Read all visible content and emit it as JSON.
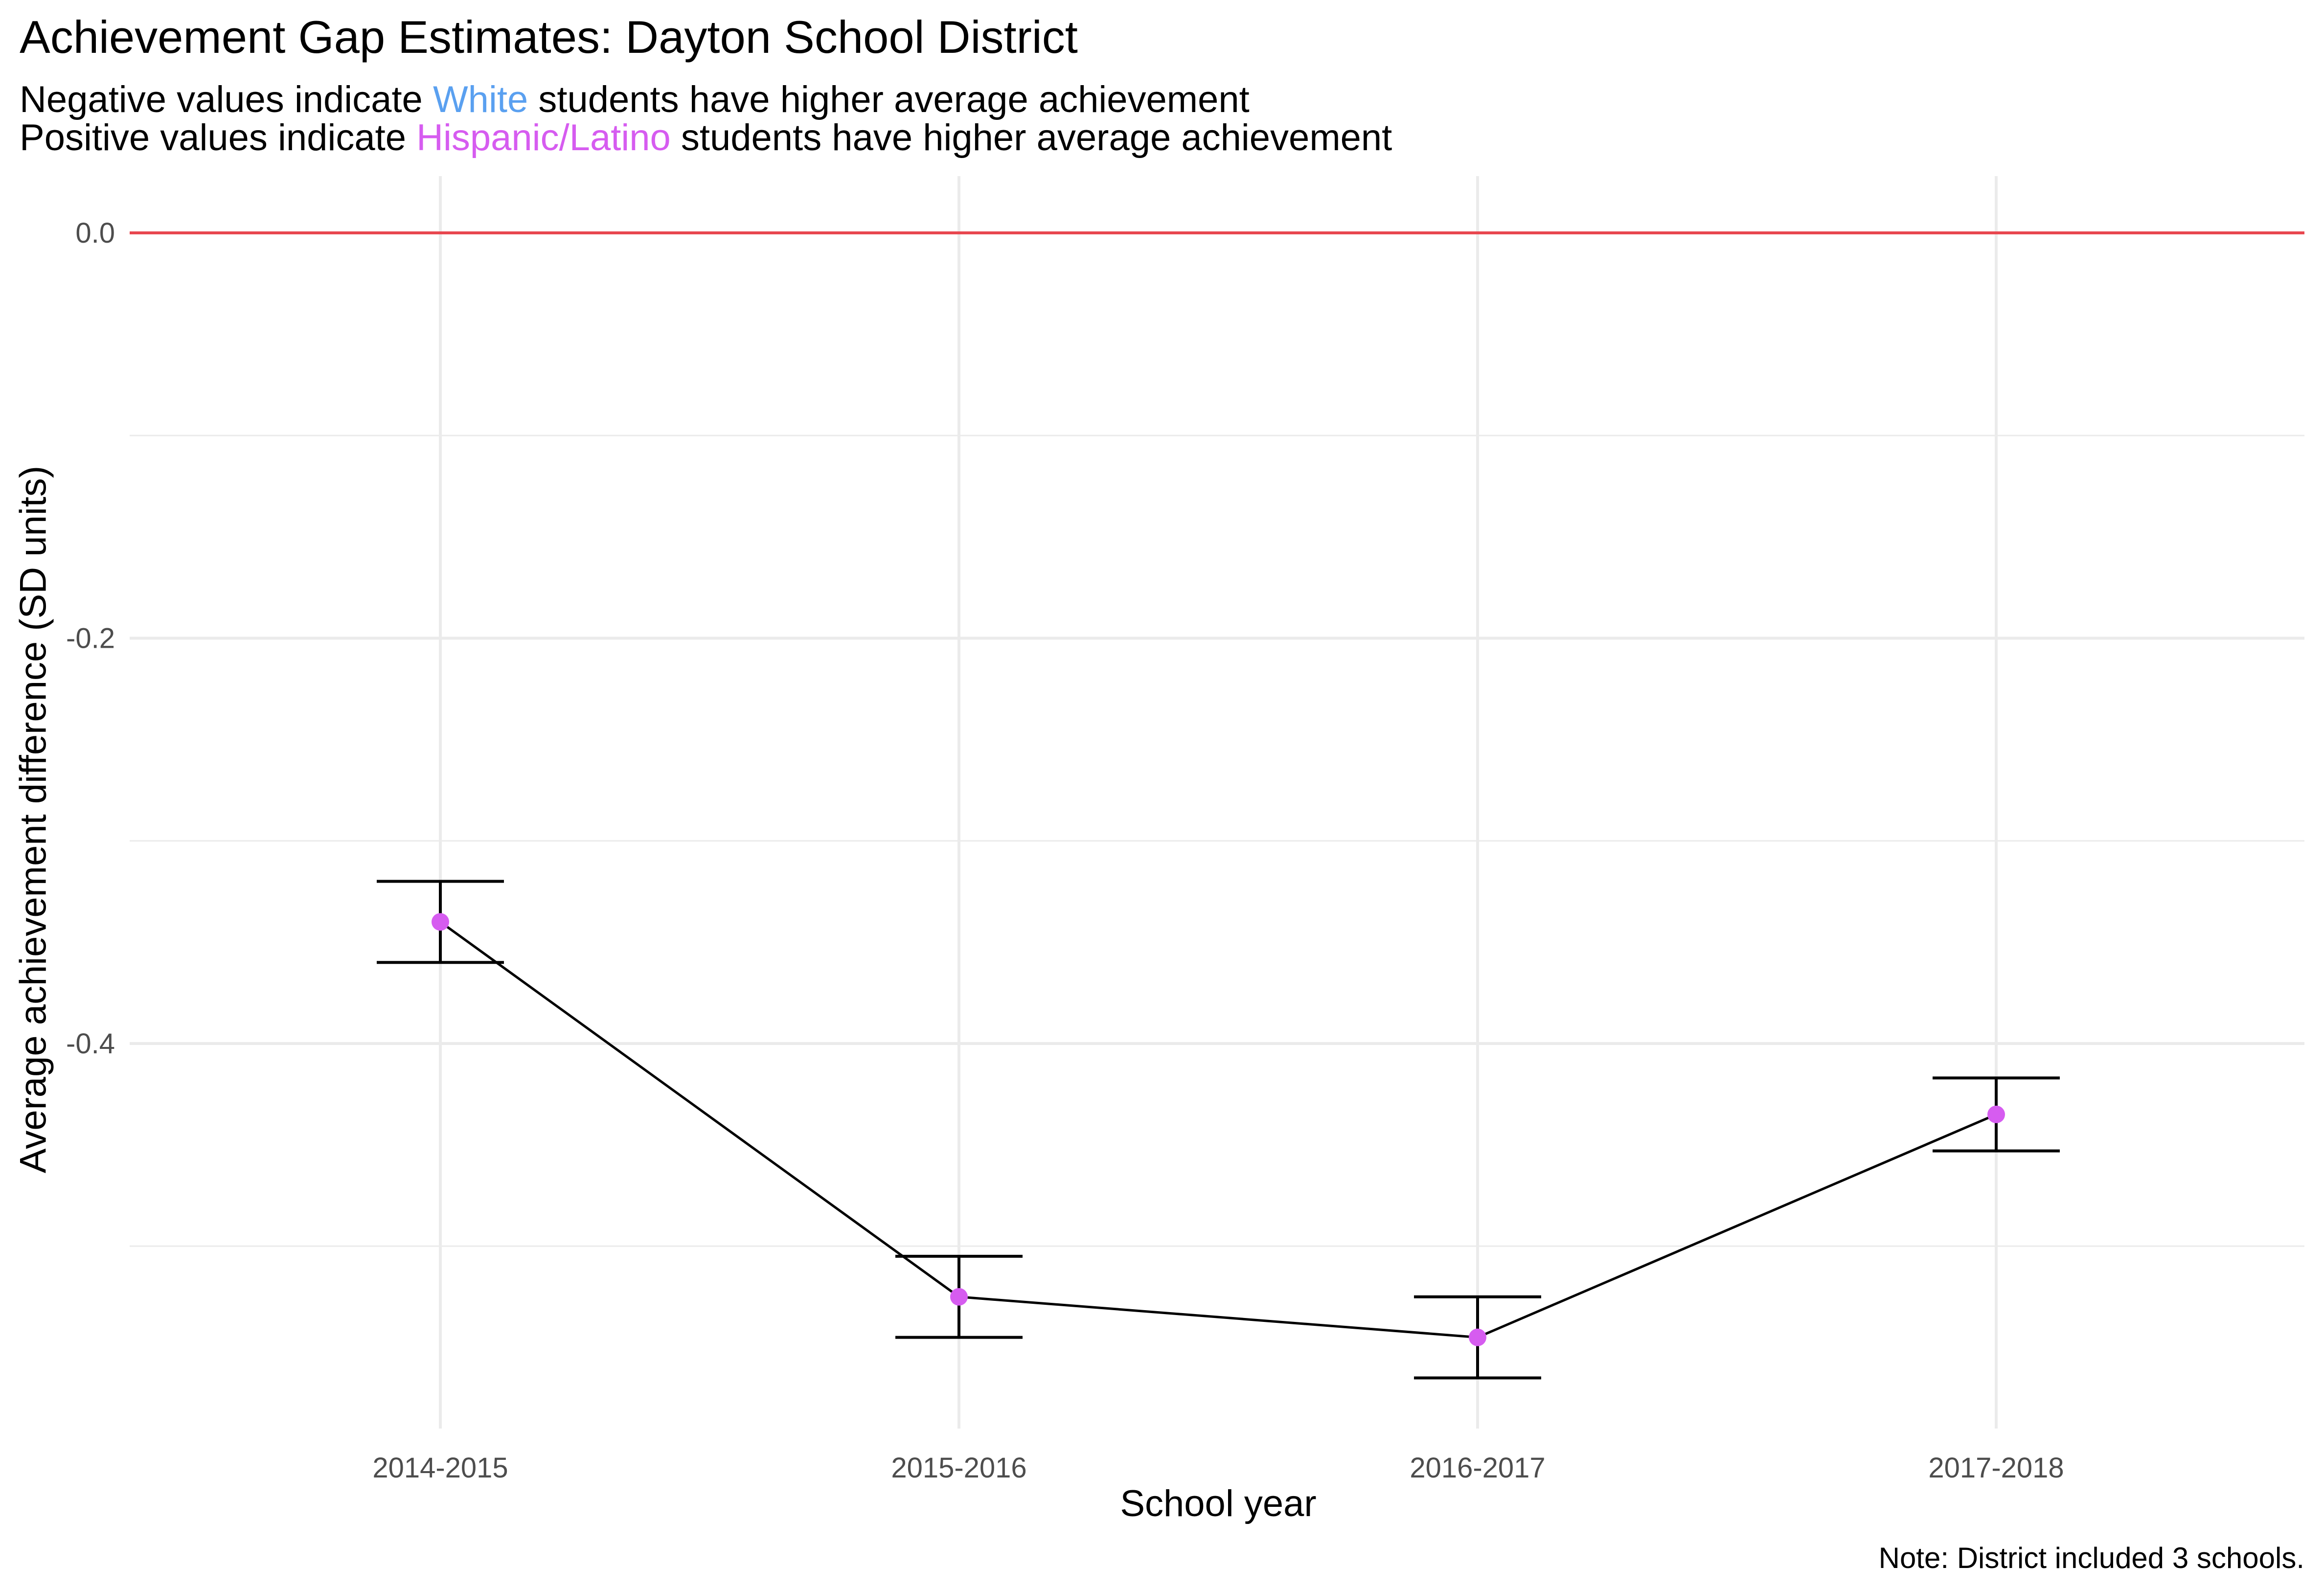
{
  "chart_data": {
    "type": "line",
    "title": "Achievement Gap Estimates: Dayton School District",
    "subtitle": {
      "line1": {
        "before": "Negative values indicate",
        "highlight": "White",
        "after": "students have higher average achievement"
      },
      "line2": {
        "before": "Positive values indicate",
        "highlight": "Hispanic/Latino",
        "after": "students have higher average achievement"
      }
    },
    "xlabel": "School year",
    "ylabel": "Average achievement difference (SD units)",
    "caption": "Note: District included 3 schools.",
    "categories": [
      "2014-2015",
      "2015-2016",
      "2016-2017",
      "2017-2018"
    ],
    "values": [
      -0.34,
      -0.525,
      -0.545,
      -0.435
    ],
    "error_low": [
      -0.36,
      -0.545,
      -0.565,
      -0.453
    ],
    "error_high": [
      -0.32,
      -0.505,
      -0.525,
      -0.417
    ],
    "ylim": [
      -0.59,
      0.028
    ],
    "yticks": [
      0.0,
      -0.2,
      -0.4
    ],
    "ytick_labels": [
      "0.0",
      "-0.2",
      "-0.4"
    ],
    "reference_line": 0.0,
    "grid": true,
    "colors": {
      "point": "#d65cf0",
      "line": "#000000",
      "reference": "#e8474f",
      "white_highlight": "#5aa0f0",
      "hispanic_highlight": "#d65cf0",
      "grid": "#ebebeb"
    }
  }
}
